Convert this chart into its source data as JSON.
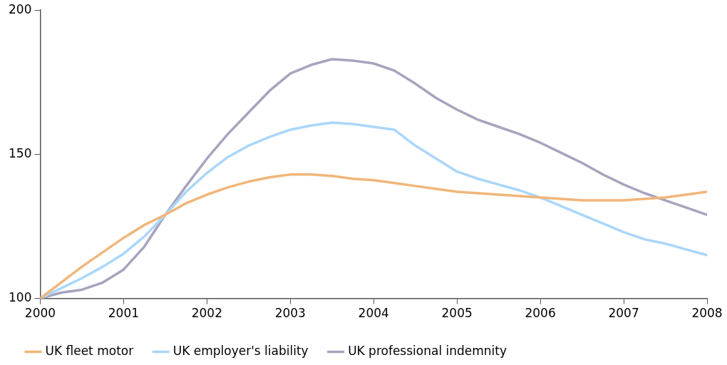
{
  "chart_data": {
    "type": "line",
    "x": [
      2000,
      2000.25,
      2000.5,
      2000.75,
      2001,
      2001.25,
      2001.5,
      2001.75,
      2002,
      2002.25,
      2002.5,
      2002.75,
      2003,
      2003.25,
      2003.5,
      2003.75,
      2004,
      2004.25,
      2004.5,
      2004.75,
      2005,
      2005.25,
      2005.5,
      2005.75,
      2006,
      2006.25,
      2006.5,
      2006.75,
      2007,
      2007.25,
      2007.5,
      2007.75,
      2008
    ],
    "series": [
      {
        "name": "UK fleet motor",
        "color": "#f0b67a",
        "values": [
          100,
          105.5,
          111,
          116,
          121,
          125.5,
          129,
          133,
          136,
          138.5,
          140.5,
          142,
          143,
          143,
          142.5,
          141.5,
          141,
          140,
          139,
          138,
          137,
          136.5,
          136,
          135.5,
          135,
          134.5,
          134,
          134,
          134,
          134.5,
          135,
          136,
          137
        ]
      },
      {
        "name": "UK employer's liability",
        "color": "#aad6fb",
        "values": [
          100,
          103.5,
          107,
          111,
          115.5,
          121.5,
          129,
          137,
          143.5,
          149,
          153,
          156,
          158.5,
          160,
          161,
          160.5,
          159.5,
          158.5,
          153,
          148.5,
          144,
          141.5,
          139.5,
          137.5,
          135,
          132,
          129,
          126,
          123,
          120.5,
          119,
          117,
          115
        ]
      },
      {
        "name": "UK professional indemnity",
        "color": "#a8a3bd",
        "values": [
          100,
          102,
          103,
          105.5,
          110,
          118,
          129,
          139,
          148.5,
          157,
          164.5,
          172,
          178,
          181,
          183,
          182.5,
          181.5,
          179,
          174.5,
          169.5,
          165.5,
          162,
          159.5,
          157,
          154,
          150.5,
          147,
          143,
          139.5,
          136.5,
          134,
          131.5,
          129
        ]
      }
    ],
    "xlim": [
      2000,
      2008
    ],
    "xticks": [
      2000,
      2001,
      2002,
      2003,
      2004,
      2005,
      2006,
      2007,
      2008
    ],
    "ylim": [
      100,
      200
    ],
    "yticks": [
      100,
      150,
      200
    ],
    "grid": false,
    "legend": "bottom",
    "marker": "none",
    "line_style": "solid"
  }
}
